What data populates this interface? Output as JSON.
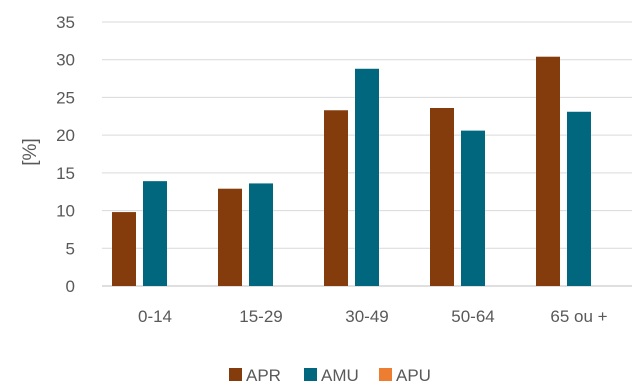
{
  "chart_data": {
    "type": "bar",
    "title": "",
    "xlabel": "",
    "ylabel": "[%]",
    "categories": [
      "0-14",
      "15-29",
      "30-49",
      "50-64",
      "65 ou +"
    ],
    "ylim": [
      0,
      35
    ],
    "yticks": [
      0,
      5,
      10,
      15,
      20,
      25,
      30,
      35
    ],
    "grid": true,
    "legend_position": "bottom",
    "series": [
      {
        "name": "APR",
        "color": "#843C0C",
        "values": [
          9.8,
          12.9,
          23.3,
          23.6,
          30.4
        ]
      },
      {
        "name": "AMU",
        "color": "#00677F",
        "values": [
          13.9,
          13.6,
          28.8,
          20.6,
          23.1
        ]
      },
      {
        "name": "APU",
        "color": "#ED7D31",
        "values": [
          0,
          0,
          0,
          0,
          0
        ]
      }
    ]
  }
}
